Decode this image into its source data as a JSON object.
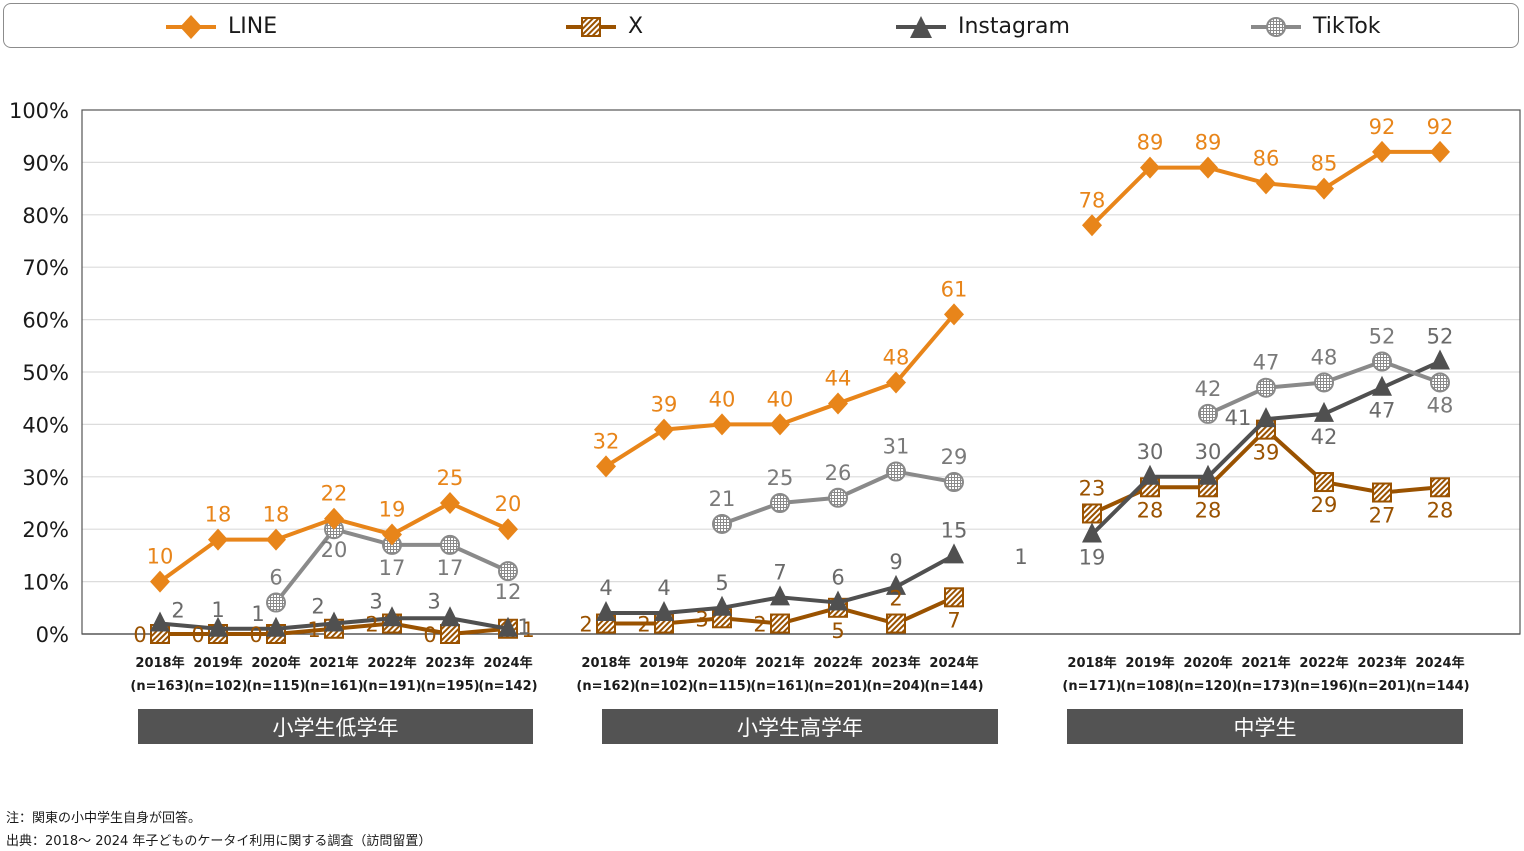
{
  "legend": [
    {
      "name": "LINE",
      "icon": "diamond-icon",
      "color": "#E8851A"
    },
    {
      "name": "X",
      "icon": "hatched-square-icon",
      "color": "#9A5200"
    },
    {
      "name": "Instagram",
      "icon": "triangle-icon",
      "color": "#505050"
    },
    {
      "name": "TikTok",
      "icon": "crosshatched-circle-icon",
      "color": "#8A8A8A"
    }
  ],
  "notes": {
    "note": "注：関東の小中学生自身が回答。",
    "source": "出典：2018～ 2024 年子どものケータイ利用に関する調査（訪問留置）"
  },
  "chart_data": {
    "type": "line",
    "title": "",
    "xlabel": "",
    "ylabel": "",
    "ylim": [
      0,
      100
    ],
    "yticks": [
      "0%",
      "10%",
      "20%",
      "30%",
      "40%",
      "50%",
      "60%",
      "70%",
      "80%",
      "90%",
      "100%"
    ],
    "grid": true,
    "legend_position": "top",
    "stray_label": "1",
    "groups": [
      {
        "name": "小学生低学年",
        "categories": [
          "2018年",
          "2019年",
          "2020年",
          "2021年",
          "2022年",
          "2023年",
          "2024年"
        ],
        "n": [
          "(n=163)",
          "(n=102)",
          "(n=115)",
          "(n=161)",
          "(n=191)",
          "(n=195)",
          "(n=142)"
        ],
        "series": [
          {
            "name": "LINE",
            "values": [
              10,
              18,
              18,
              22,
              19,
              25,
              20
            ]
          },
          {
            "name": "X",
            "values": [
              0,
              0,
              0,
              1,
              2,
              0,
              1
            ]
          },
          {
            "name": "Instagram",
            "values": [
              2,
              1,
              1,
              2,
              3,
              3,
              1
            ]
          },
          {
            "name": "TikTok",
            "values": [
              null,
              null,
              6,
              20,
              17,
              17,
              12
            ]
          }
        ]
      },
      {
        "name": "小学生高学年",
        "categories": [
          "2018年",
          "2019年",
          "2020年",
          "2021年",
          "2022年",
          "2023年",
          "2024年"
        ],
        "n": [
          "(n=162)",
          "(n=102)",
          "(n=115)",
          "(n=161)",
          "(n=201)",
          "(n=204)",
          "(n=144)"
        ],
        "series": [
          {
            "name": "LINE",
            "values": [
              32,
              39,
              40,
              40,
              44,
              48,
              61
            ]
          },
          {
            "name": "X",
            "values": [
              2,
              2,
              3,
              2,
              5,
              2,
              7
            ]
          },
          {
            "name": "Instagram",
            "values": [
              4,
              4,
              5,
              7,
              6,
              9,
              15
            ]
          },
          {
            "name": "TikTok",
            "values": [
              null,
              null,
              21,
              25,
              26,
              31,
              29
            ]
          }
        ]
      },
      {
        "name": "中学生",
        "categories": [
          "2018年",
          "2019年",
          "2020年",
          "2021年",
          "2022年",
          "2023年",
          "2024年"
        ],
        "n": [
          "(n=171)",
          "(n=108)",
          "(n=120)",
          "(n=173)",
          "(n=196)",
          "(n=201)",
          "(n=144)"
        ],
        "series": [
          {
            "name": "LINE",
            "values": [
              78,
              89,
              89,
              86,
              85,
              92,
              92
            ]
          },
          {
            "name": "X",
            "values": [
              23,
              28,
              28,
              39,
              29,
              27,
              28
            ]
          },
          {
            "name": "Instagram",
            "values": [
              19,
              30,
              30,
              41,
              42,
              47,
              52
            ]
          },
          {
            "name": "TikTok",
            "values": [
              null,
              null,
              42,
              47,
              48,
              52,
              48
            ]
          }
        ]
      }
    ]
  }
}
